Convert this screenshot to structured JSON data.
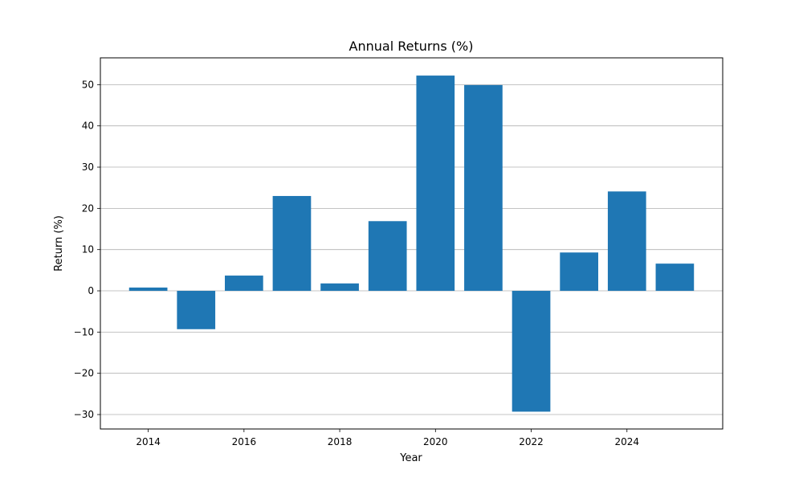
{
  "chart_data": {
    "type": "bar",
    "title": "Annual Returns (%)",
    "xlabel": "Year",
    "ylabel": "Return (%)",
    "categories": [
      2014,
      2015,
      2016,
      2017,
      2018,
      2019,
      2020,
      2021,
      2022,
      2023,
      2024,
      2025
    ],
    "values": [
      0.8,
      -9.3,
      3.7,
      23.0,
      1.8,
      16.9,
      52.2,
      49.9,
      -29.3,
      9.3,
      24.1,
      6.6
    ],
    "xlim": [
      2013.0,
      2026.0
    ],
    "ylim": [
      -33.5,
      56.5
    ],
    "xticks": [
      2014,
      2016,
      2018,
      2020,
      2022,
      2024
    ],
    "xtick_labels": [
      "2014",
      "2016",
      "2018",
      "2020",
      "2022",
      "2024"
    ],
    "yticks": [
      -30,
      -20,
      -10,
      0,
      10,
      20,
      30,
      40,
      50
    ],
    "ytick_labels": [
      "−30",
      "−20",
      "−10",
      "0",
      "10",
      "20",
      "30",
      "40",
      "50"
    ],
    "grid": "y",
    "legend": "none",
    "bar_color": "#1f77b4"
  }
}
